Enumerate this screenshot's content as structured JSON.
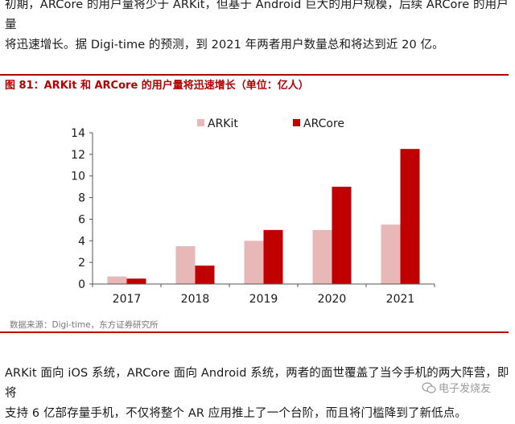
{
  "text": {
    "para_top_line1": "初期，ARCore 的用户量将少于 ARKit，但基于 Android 巨大的用户规模，后续 ARCore 的用户量",
    "para_top_line2": "将迅速增长。据 Digi-time 的预测，到 2021 年两者用户数量总和将达到近 20 亿。",
    "figure_title": "图 81：ARKit 和 ARCore 的用户量将迅速增长（单位：亿人）",
    "source": "数据来源：Digi-time，东方证券研究所",
    "para_bottom_line1": "ARKit 面向 iOS 系统，ARCore 面向 Android 系统，两者的面世覆盖了当今手机的两大阵营，即将",
    "para_bottom_line2": "支持 6 亿部存量手机，不仅将整个 AR 应用推上了一个台阶，而且将门槛降到了新低点。",
    "watermark": "电子发烧友",
    "watermark_icon": "wechat-icon"
  },
  "colors": {
    "accent": "#b30000",
    "arkit": "#e8b7b7",
    "arcore": "#c00000"
  },
  "chart_data": {
    "type": "bar",
    "categories": [
      "2017",
      "2018",
      "2019",
      "2020",
      "2021"
    ],
    "series": [
      {
        "name": "ARKit",
        "values": [
          0.7,
          3.5,
          4.0,
          5.0,
          5.5
        ]
      },
      {
        "name": "ARCore",
        "values": [
          0.5,
          1.7,
          5.0,
          9.0,
          12.5
        ]
      }
    ],
    "ylim": [
      0,
      14
    ],
    "yticks": [
      0,
      2,
      4,
      6,
      8,
      10,
      12,
      14
    ],
    "grid": false,
    "legend": "top-center",
    "title": "",
    "xlabel": "",
    "ylabel": ""
  }
}
